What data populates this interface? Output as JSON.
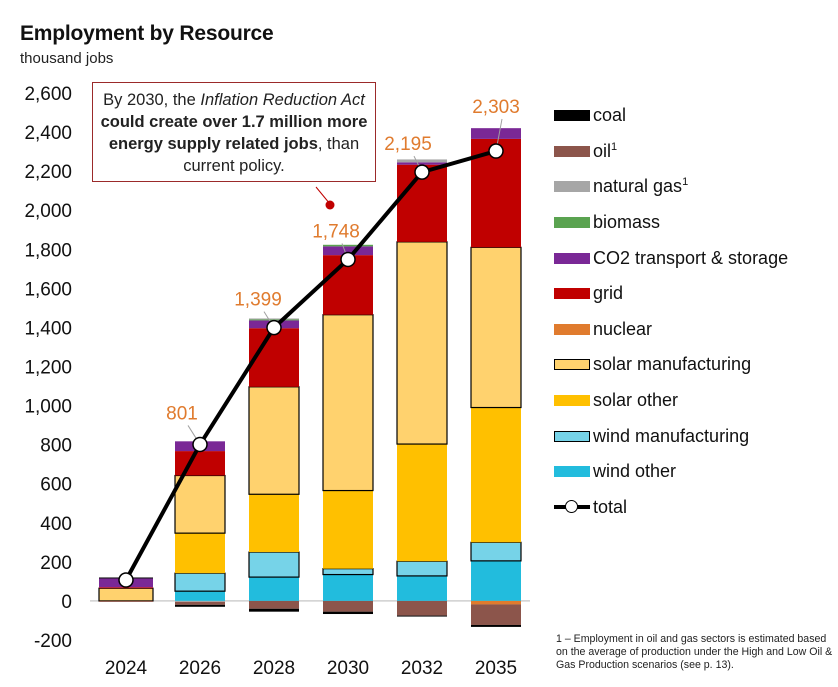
{
  "header": {
    "title": "Employment by Resource",
    "subtitle": "thousand jobs"
  },
  "callout": {
    "part1": "By 2030, the ",
    "part2_italic": "Inflation Reduction Act",
    "part3_bold": " could create over 1.7 million more energy supply related jobs",
    "part4": ", than current policy."
  },
  "footnote": "1 – Employment in oil and gas sectors is estimated based on the average of production under the High and Low Oil & Gas Production scenarios (see p. 13).",
  "chart_data": {
    "type": "bar",
    "stacked": true,
    "title": "Employment by Resource",
    "ylabel": "thousand jobs",
    "xlabel": "",
    "ylim": [
      -200,
      2600
    ],
    "yticks": [
      -200,
      0,
      200,
      400,
      600,
      800,
      1000,
      1200,
      1400,
      1600,
      1800,
      2000,
      2200,
      2400,
      2600
    ],
    "ytick_labels": [
      "-200",
      "0",
      "200",
      "400",
      "600",
      "800",
      "1,000",
      "1,200",
      "1,400",
      "1,600",
      "1,800",
      "2,000",
      "2,200",
      "2,400",
      "2,600"
    ],
    "grid": false,
    "legend_position": "right",
    "categories": [
      "2024",
      "2026",
      "2028",
      "2030",
      "2032",
      "2035"
    ],
    "series": [
      {
        "name": "coal",
        "color": "#000000",
        "outlined": false,
        "values": [
          5,
          -10,
          -15,
          -12,
          -5,
          -10
        ]
      },
      {
        "name": "oil",
        "sup": "1",
        "color": "#8c554b",
        "outlined": false,
        "values": [
          -5,
          -15,
          -40,
          -55,
          -75,
          -105
        ]
      },
      {
        "name": "natural gas",
        "sup": "1",
        "color": "#a6a6a6",
        "outlined": false,
        "values": [
          0,
          -5,
          5,
          0,
          15,
          0
        ]
      },
      {
        "name": "biomass",
        "color": "#5aa350",
        "outlined": false,
        "values": [
          0,
          0,
          5,
          8,
          0,
          0
        ]
      },
      {
        "name": "CO2 transport & storage",
        "color": "#7a2896",
        "outlined": false,
        "values": [
          45,
          50,
          40,
          45,
          12,
          55
        ]
      },
      {
        "name": "grid",
        "color": "#c00000",
        "outlined": false,
        "values": [
          5,
          125,
          300,
          305,
          395,
          555
        ]
      },
      {
        "name": "nuclear",
        "color": "#e07b2e",
        "outlined": false,
        "values": [
          0,
          0,
          0,
          0,
          0,
          -18
        ]
      },
      {
        "name": "solar manufacturing",
        "color": "#ffd26e",
        "outlined": true,
        "values": [
          65,
          295,
          550,
          900,
          1035,
          820
        ]
      },
      {
        "name": "solar other",
        "color": "#ffc000",
        "outlined": false,
        "values": [
          0,
          205,
          296,
          400,
          600,
          690
        ]
      },
      {
        "name": "wind manufacturing",
        "color": "#76d3e8",
        "outlined": true,
        "values": [
          0,
          92,
          128,
          30,
          75,
          95
        ]
      },
      {
        "name": "wind other",
        "color": "#22bcdd",
        "outlined": false,
        "values": [
          0,
          50,
          122,
          135,
          128,
          205
        ]
      }
    ],
    "stack_order": [
      "wind other",
      "wind manufacturing",
      "solar other",
      "solar manufacturing",
      "nuclear",
      "grid",
      "CO2 transport & storage",
      "biomass",
      "natural gas",
      "oil",
      "coal"
    ],
    "total": {
      "name": "total",
      "values": [
        107,
        801,
        1399,
        1748,
        2195,
        2303
      ],
      "labels": [
        "",
        "801",
        "1,399",
        "1,748",
        "2,195",
        "2,303"
      ],
      "label_color": "#e07b2e"
    },
    "annotations": [
      {
        "text": "By 2030, the Inflation Reduction Act could create over 1.7 million more energy supply related jobs, than current policy.",
        "points_to": "2030",
        "border_color": "#9b2a2a"
      }
    ]
  }
}
